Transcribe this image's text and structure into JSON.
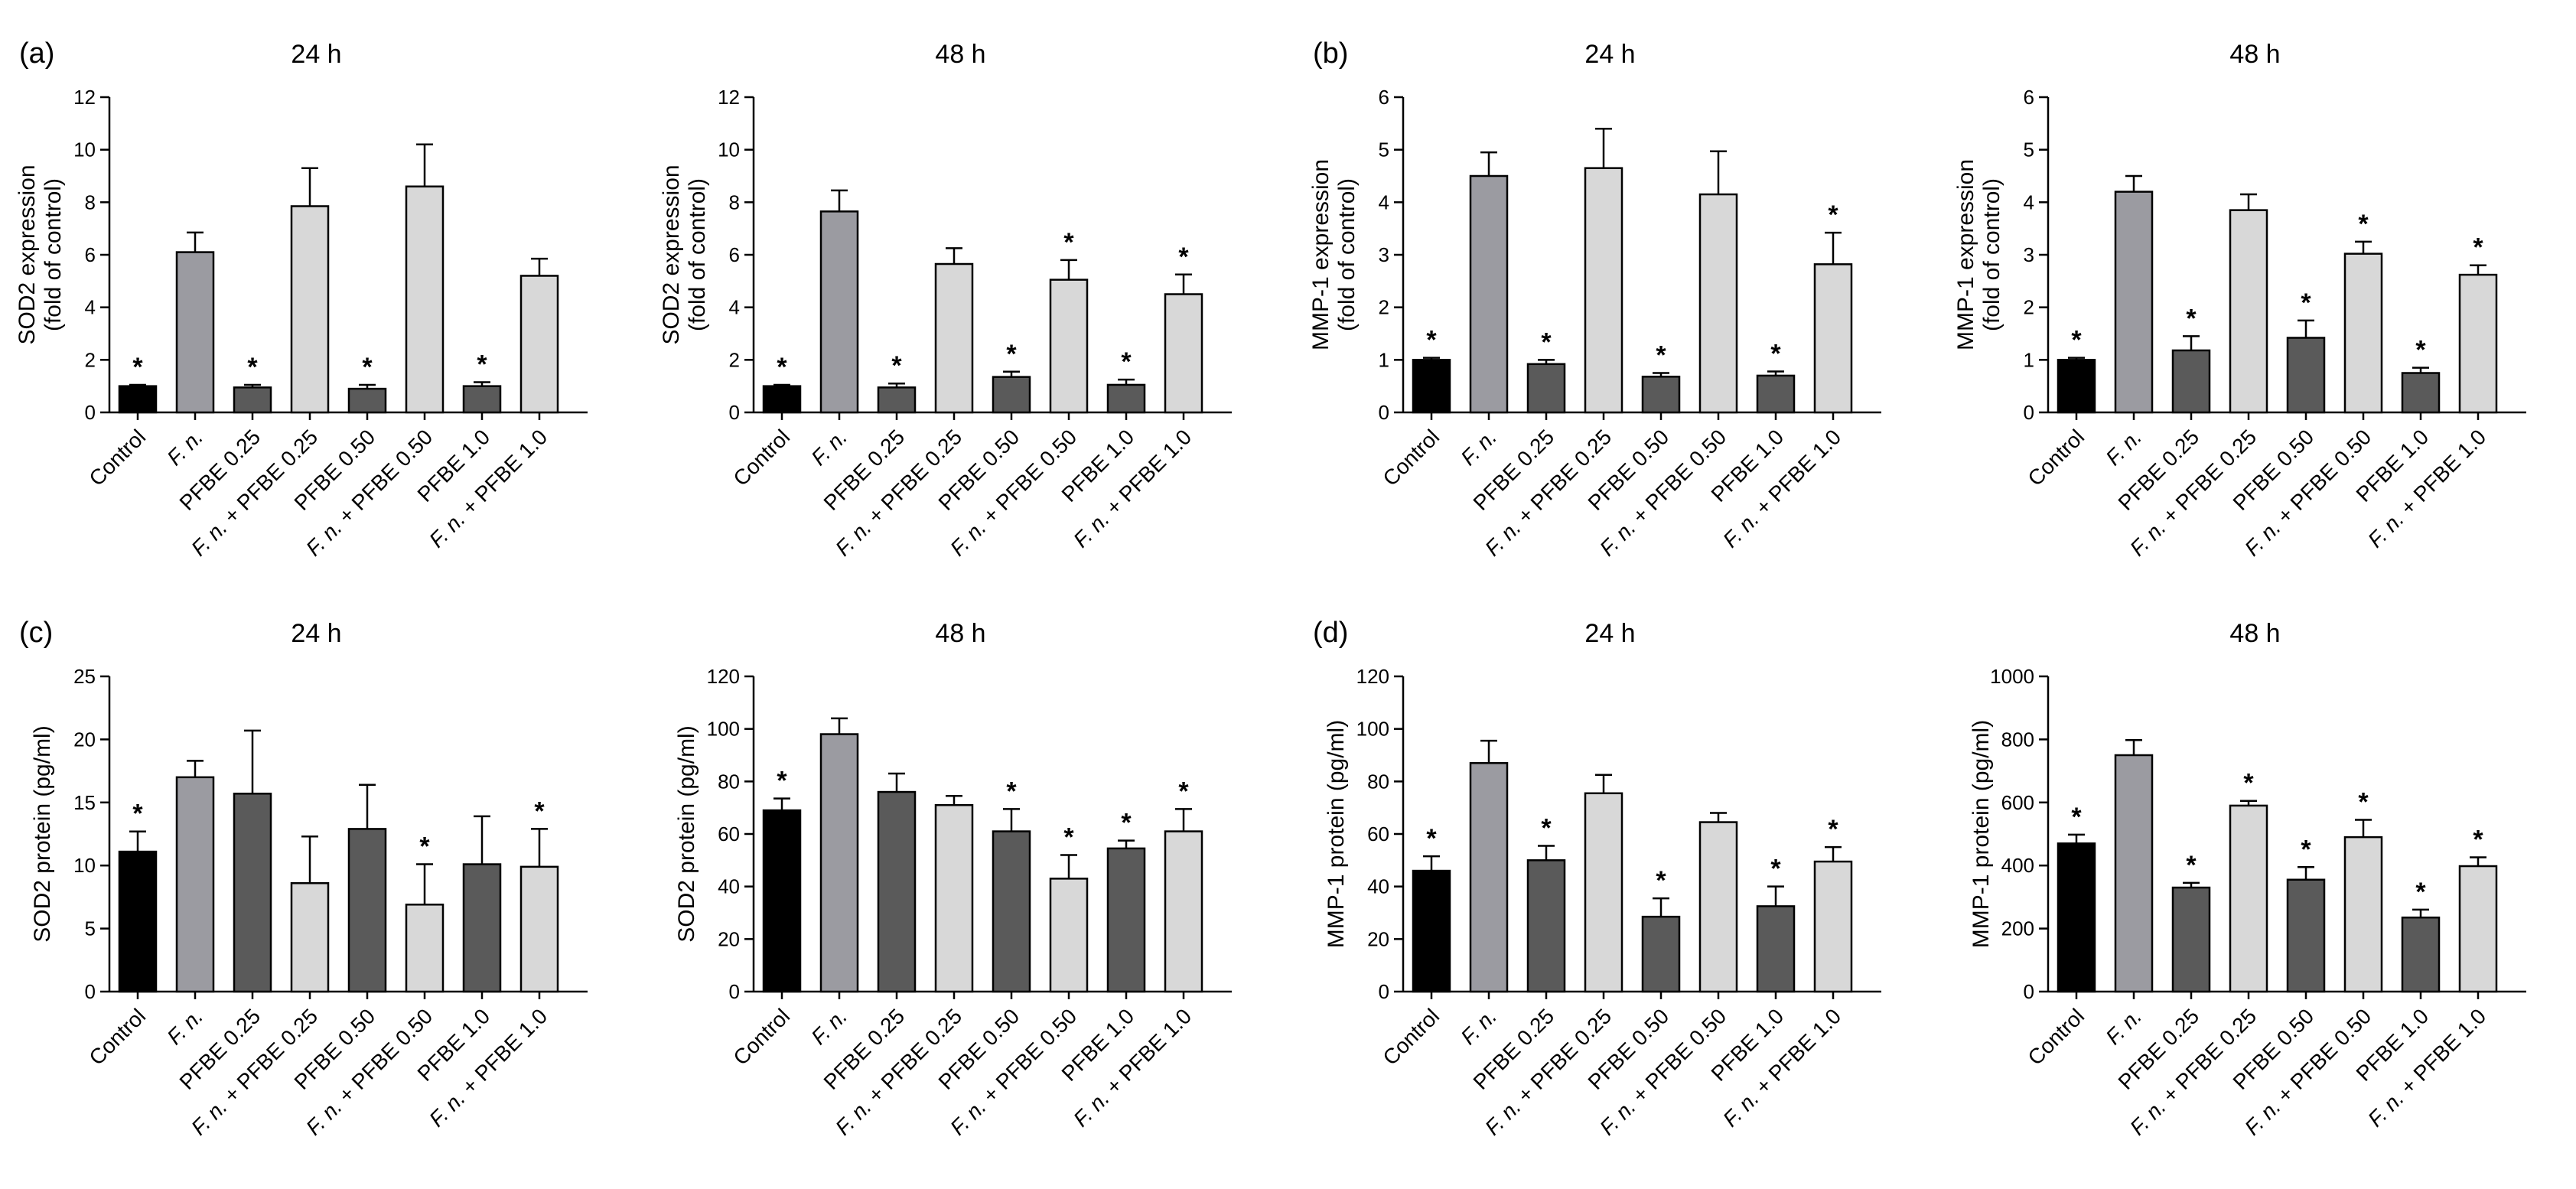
{
  "panel_letters": [
    "(a)",
    "(b)",
    "(c)",
    "(d)"
  ],
  "colors": {
    "control": "#000000",
    "fn": "#9b9ba1",
    "pfbe": "#5a5a5a",
    "combo": "#d8d8d8",
    "stroke": "#000000"
  },
  "categories": [
    "Control",
    "F. n.",
    "PFBE 0.25",
    "F. n. + PFBE 0.25",
    "PFBE 0.50",
    "F. n. + PFBE 0.50",
    "PFBE 1.0",
    "F. n. + PFBE 1.0"
  ],
  "chart_data": [
    {
      "type": "bar",
      "panel": "(a)",
      "title": "24 h",
      "ylabel": [
        "SOD2 expression",
        "(fold of control)"
      ],
      "ylim": [
        0,
        12
      ],
      "yticks": [
        0,
        2,
        4,
        6,
        8,
        10,
        12
      ],
      "categories": [
        "Control",
        "F. n.",
        "PFBE 0.25",
        "F. n. + PFBE 0.25",
        "PFBE 0.50",
        "F. n. + PFBE 0.50",
        "PFBE 1.0",
        "F. n. + PFBE 1.0"
      ],
      "values": [
        1.0,
        6.1,
        0.95,
        7.85,
        0.9,
        8.6,
        1.0,
        5.2
      ],
      "errors": [
        0.05,
        0.75,
        0.1,
        1.45,
        0.15,
        1.6,
        0.15,
        0.65
      ],
      "significant": [
        true,
        false,
        true,
        false,
        true,
        false,
        true,
        false
      ]
    },
    {
      "type": "bar",
      "panel": "",
      "title": "48 h",
      "ylabel": [
        "SOD2 expression",
        "(fold of control)"
      ],
      "ylim": [
        0,
        12
      ],
      "yticks": [
        0,
        2,
        4,
        6,
        8,
        10,
        12
      ],
      "categories": [
        "Control",
        "F. n.",
        "PFBE 0.25",
        "F. n. + PFBE 0.25",
        "PFBE 0.50",
        "F. n. + PFBE 0.50",
        "PFBE 1.0",
        "F. n. + PFBE 1.0"
      ],
      "values": [
        1.0,
        7.65,
        0.95,
        5.65,
        1.35,
        5.05,
        1.05,
        4.5
      ],
      "errors": [
        0.05,
        0.8,
        0.15,
        0.6,
        0.2,
        0.75,
        0.2,
        0.75
      ],
      "significant": [
        true,
        false,
        true,
        false,
        true,
        true,
        true,
        true
      ]
    },
    {
      "type": "bar",
      "panel": "(b)",
      "title": "24 h",
      "ylabel": [
        "MMP-1 expression",
        "(fold of control)"
      ],
      "ylim": [
        0,
        6
      ],
      "yticks": [
        0,
        1,
        2,
        3,
        4,
        5,
        6
      ],
      "categories": [
        "Control",
        "F. n.",
        "PFBE 0.25",
        "F. n. + PFBE 0.25",
        "PFBE 0.50",
        "F. n. + PFBE 0.50",
        "PFBE 1.0",
        "F. n. + PFBE 1.0"
      ],
      "values": [
        1.0,
        4.5,
        0.92,
        4.65,
        0.68,
        4.15,
        0.7,
        2.82
      ],
      "errors": [
        0.04,
        0.45,
        0.08,
        0.75,
        0.07,
        0.82,
        0.08,
        0.6
      ],
      "significant": [
        true,
        false,
        true,
        false,
        true,
        false,
        true,
        true
      ]
    },
    {
      "type": "bar",
      "panel": "",
      "title": "48 h",
      "ylabel": [
        "MMP-1 expression",
        "(fold of control)"
      ],
      "ylim": [
        0,
        6
      ],
      "yticks": [
        0,
        1,
        2,
        3,
        4,
        5,
        6
      ],
      "categories": [
        "Control",
        "F. n.",
        "PFBE 0.25",
        "F. n. + PFBE 0.25",
        "PFBE 0.50",
        "F. n. + PFBE 0.50",
        "PFBE 1.0",
        "F. n. + PFBE 1.0"
      ],
      "values": [
        1.0,
        4.2,
        1.18,
        3.85,
        1.42,
        3.02,
        0.75,
        2.62
      ],
      "errors": [
        0.04,
        0.3,
        0.27,
        0.3,
        0.33,
        0.23,
        0.1,
        0.18
      ],
      "significant": [
        true,
        false,
        true,
        false,
        true,
        true,
        true,
        true
      ]
    },
    {
      "type": "bar",
      "panel": "(c)",
      "title": "24 h",
      "ylabel": [
        "SOD2 protein (pg/ml)"
      ],
      "ylim": [
        0,
        25
      ],
      "yticks": [
        0,
        5,
        10,
        15,
        20,
        25
      ],
      "categories": [
        "Control",
        "F. n.",
        "PFBE 0.25",
        "F. n. + PFBE 0.25",
        "PFBE 0.50",
        "F. n. + PFBE 0.50",
        "PFBE 1.0",
        "F. n. + PFBE 1.0"
      ],
      "values": [
        11.1,
        17.0,
        15.7,
        8.6,
        12.9,
        6.9,
        10.1,
        9.9
      ],
      "errors": [
        1.6,
        1.3,
        5.0,
        3.7,
        3.5,
        3.2,
        3.8,
        3.0
      ],
      "significant": [
        true,
        false,
        false,
        false,
        false,
        true,
        false,
        true
      ]
    },
    {
      "type": "bar",
      "panel": "",
      "title": "48 h",
      "ylabel": [
        "SOD2 protein (pg/ml)"
      ],
      "ylim": [
        0,
        120
      ],
      "yticks": [
        0,
        20,
        40,
        60,
        80,
        100,
        120
      ],
      "categories": [
        "Control",
        "F. n.",
        "PFBE 0.25",
        "F. n. + PFBE 0.25",
        "PFBE 0.50",
        "F. n. + PFBE 0.50",
        "PFBE 1.0",
        "F. n. + PFBE 1.0"
      ],
      "values": [
        69,
        98,
        76,
        71,
        61,
        43,
        54.5,
        61
      ],
      "errors": [
        4.5,
        6,
        7,
        3.5,
        8.5,
        9,
        3,
        8.5
      ],
      "significant": [
        true,
        false,
        false,
        false,
        true,
        true,
        true,
        true
      ]
    },
    {
      "type": "bar",
      "panel": "(d)",
      "title": "24 h",
      "ylabel": [
        "MMP-1 protein (pg/ml)"
      ],
      "ylim": [
        0,
        120
      ],
      "yticks": [
        0,
        20,
        40,
        60,
        80,
        100,
        120
      ],
      "categories": [
        "Control",
        "F. n.",
        "PFBE 0.25",
        "F. n. + PFBE 0.25",
        "PFBE 0.50",
        "F. n. + PFBE 0.50",
        "PFBE 1.0",
        "F. n. + PFBE 1.0"
      ],
      "values": [
        46,
        87,
        50,
        75.5,
        28.5,
        64.5,
        32.5,
        49.5
      ],
      "errors": [
        5.5,
        8.5,
        5.5,
        7,
        7,
        3.5,
        7.5,
        5.5
      ],
      "significant": [
        true,
        false,
        true,
        false,
        true,
        false,
        true,
        true
      ]
    },
    {
      "type": "bar",
      "panel": "",
      "title": "48 h",
      "ylabel": [
        "MMP-1 protein (pg/ml)"
      ],
      "ylim": [
        0,
        1000
      ],
      "yticks": [
        0,
        200,
        400,
        600,
        800,
        1000
      ],
      "categories": [
        "Control",
        "F. n.",
        "PFBE 0.25",
        "F. n. + PFBE 0.25",
        "PFBE 0.50",
        "F. n. + PFBE 0.50",
        "PFBE 1.0",
        "F. n. + PFBE 1.0"
      ],
      "values": [
        470,
        750,
        330,
        590,
        355,
        490,
        235,
        398
      ],
      "errors": [
        28,
        48,
        15,
        15,
        40,
        55,
        25,
        28
      ],
      "significant": [
        true,
        false,
        true,
        true,
        true,
        true,
        true,
        true
      ]
    }
  ]
}
